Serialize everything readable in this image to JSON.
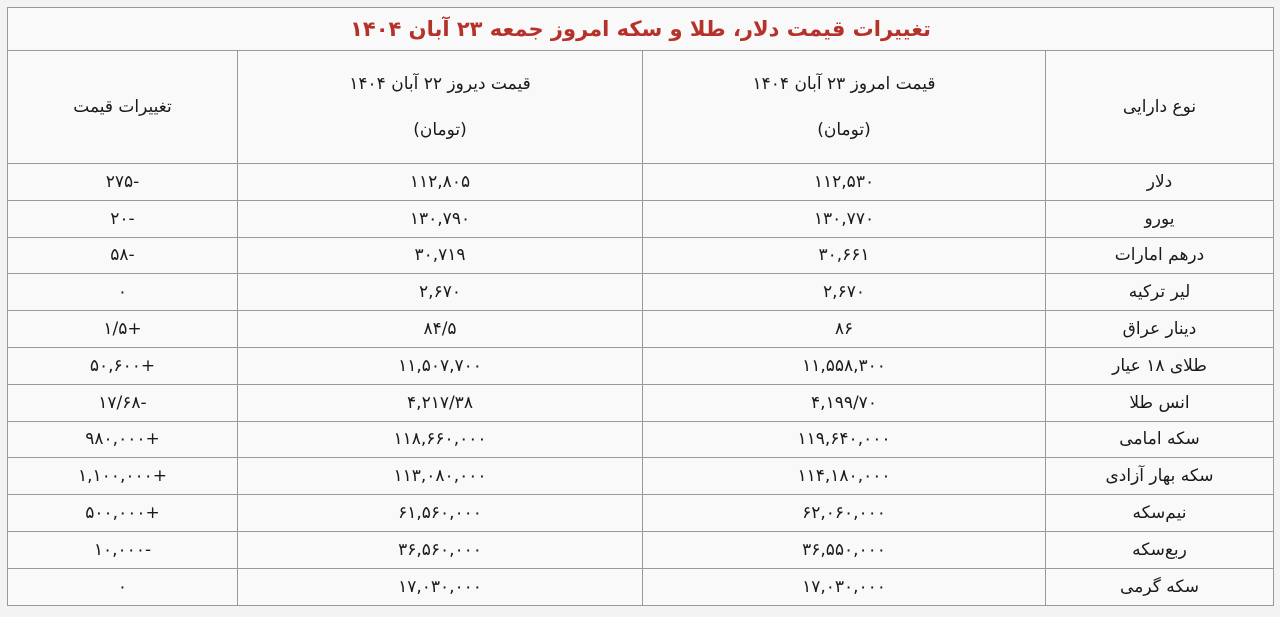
{
  "title": "تغییرات قیمت دلار، طلا و سکه امروز جمعه ۲۳ آبان ۱۴۰۴",
  "colors": {
    "title": "#b5322b",
    "border": "#9a9a9a"
  },
  "headers": {
    "asset": "نوع دارایی",
    "today": "قیمت امروز ۲۳ آبان ۱۴۰۴",
    "today_unit": "(تومان)",
    "yesterday": "قیمت دیروز ۲۲ آبان ۱۴۰۴",
    "yesterday_unit": "(تومان)",
    "change": "تغییرات قیمت"
  },
  "rows": [
    {
      "asset": "دلار",
      "today": "۱۱۲,۵۳۰",
      "yesterday": "۱۱۲,۸۰۵",
      "change": "۲۷۵-"
    },
    {
      "asset": "یورو",
      "today": "۱۳۰,۷۷۰",
      "yesterday": "۱۳۰,۷۹۰",
      "change": "۲۰-"
    },
    {
      "asset": "درهم امارات",
      "today": "۳۰,۶۶۱",
      "yesterday": "۳۰,۷۱۹",
      "change": "۵۸-"
    },
    {
      "asset": "لیر ترکیه",
      "today": "۲,۶۷۰",
      "yesterday": "۲,۶۷۰",
      "change": "۰"
    },
    {
      "asset": "دینار عراق",
      "today": "۸۶",
      "yesterday": "۸۴/۵",
      "change": "۱/۵+"
    },
    {
      "asset": "طلای ۱۸ عیار",
      "today": "۱۱,۵۵۸,۳۰۰",
      "yesterday": "۱۱,۵۰۷,۷۰۰",
      "change": "۵۰,۶۰۰+"
    },
    {
      "asset": "انس طلا",
      "today": "۴,۱۹۹/۷۰",
      "yesterday": "۴,۲۱۷/۳۸",
      "change": "۱۷/۶۸-"
    },
    {
      "asset": "سکه امامی",
      "today": "۱۱۹,۶۴۰,۰۰۰",
      "yesterday": "۱۱۸,۶۶۰,۰۰۰",
      "change": "۹۸۰,۰۰۰+"
    },
    {
      "asset": "سکه بهار آزادی",
      "today": "۱۱۴,۱۸۰,۰۰۰",
      "yesterday": "۱۱۳,۰۸۰,۰۰۰",
      "change": "۱,۱۰۰,۰۰۰+"
    },
    {
      "asset": "نیم‌سکه",
      "today": "۶۲,۰۶۰,۰۰۰",
      "yesterday": "۶۱,۵۶۰,۰۰۰",
      "change": "۵۰۰,۰۰۰+"
    },
    {
      "asset": "ربع‌سکه",
      "today": "۳۶,۵۵۰,۰۰۰",
      "yesterday": "۳۶,۵۶۰,۰۰۰",
      "change": "۱۰,۰۰۰-"
    },
    {
      "asset": "سکه گرمی",
      "today": "۱۷,۰۳۰,۰۰۰",
      "yesterday": "۱۷,۰۳۰,۰۰۰",
      "change": "۰"
    }
  ]
}
